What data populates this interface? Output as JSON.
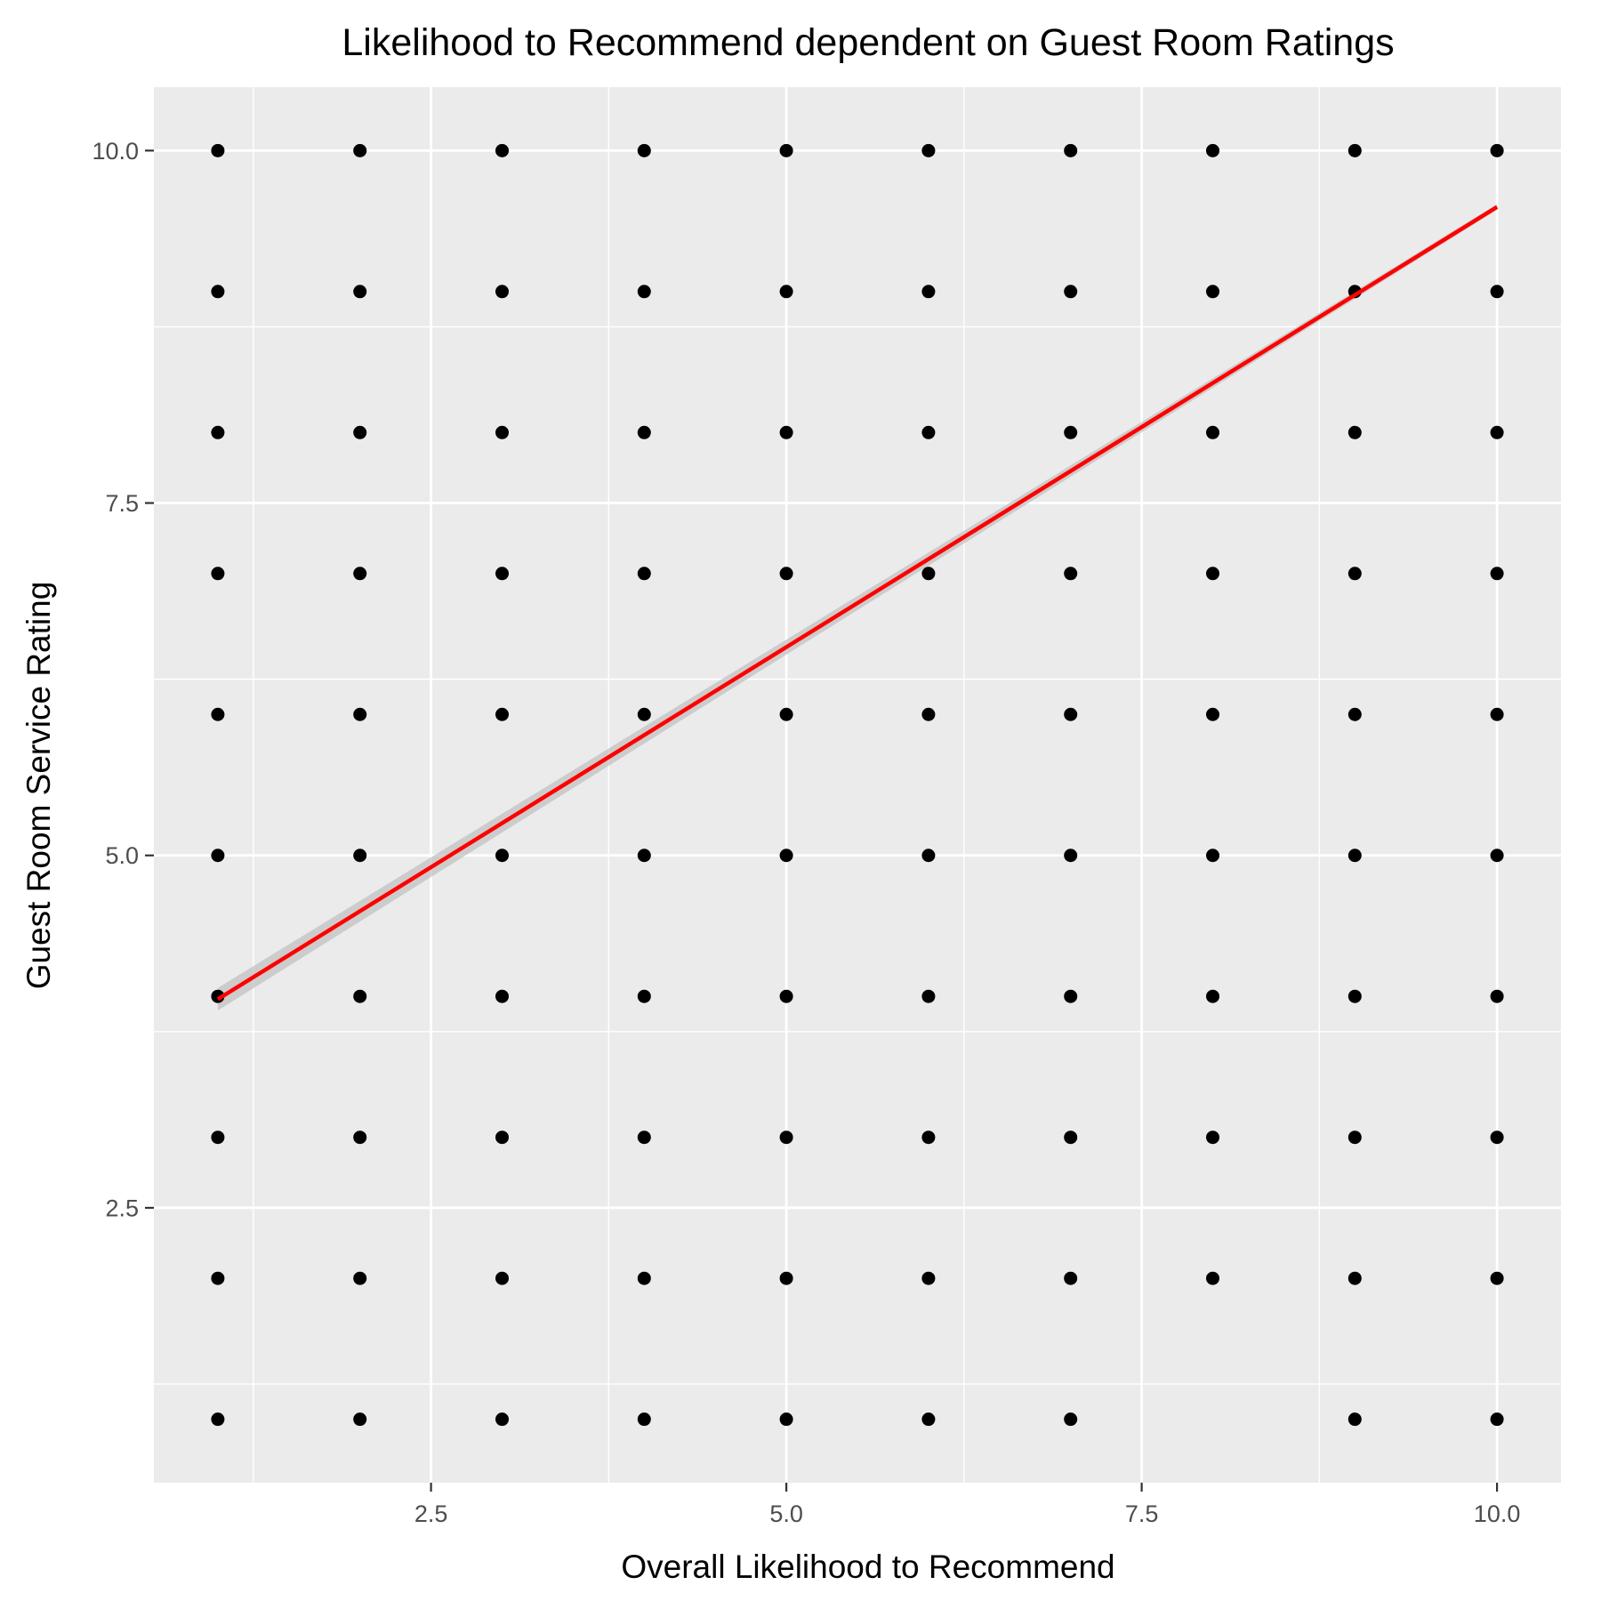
{
  "chart_data": {
    "type": "scatter",
    "title": "Likelihood to Recommend dependent on Guest Room Ratings",
    "xlabel": "Overall Likelihood to Recommend",
    "ylabel": "Guest Room Service Rating",
    "xlim": [
      0.55,
      10.45
    ],
    "ylim": [
      0.55,
      10.45
    ],
    "x_ticks": [
      2.5,
      5.0,
      7.5,
      10.0
    ],
    "x_tick_labels": [
      "2.5",
      "5.0",
      "7.5",
      "10.0"
    ],
    "y_ticks": [
      2.5,
      5.0,
      7.5,
      10.0
    ],
    "y_tick_labels": [
      "2.5",
      "5.0",
      "7.5",
      "10.0"
    ],
    "grid": true,
    "panel_background": "#ebebeb",
    "grid_color": "#ffffff",
    "point_color": "#000000",
    "trend_color": "#ff0000",
    "ribbon_color": "#bfbfbf",
    "points": [
      [
        1,
        1
      ],
      [
        1,
        2
      ],
      [
        1,
        3
      ],
      [
        1,
        4
      ],
      [
        1,
        5
      ],
      [
        1,
        6
      ],
      [
        1,
        7
      ],
      [
        1,
        8
      ],
      [
        1,
        9
      ],
      [
        1,
        10
      ],
      [
        2,
        1
      ],
      [
        2,
        2
      ],
      [
        2,
        3
      ],
      [
        2,
        4
      ],
      [
        2,
        5
      ],
      [
        2,
        6
      ],
      [
        2,
        7
      ],
      [
        2,
        8
      ],
      [
        2,
        9
      ],
      [
        2,
        10
      ],
      [
        3,
        1
      ],
      [
        3,
        2
      ],
      [
        3,
        3
      ],
      [
        3,
        4
      ],
      [
        3,
        5
      ],
      [
        3,
        6
      ],
      [
        3,
        7
      ],
      [
        3,
        8
      ],
      [
        3,
        9
      ],
      [
        3,
        10
      ],
      [
        4,
        1
      ],
      [
        4,
        2
      ],
      [
        4,
        3
      ],
      [
        4,
        4
      ],
      [
        4,
        5
      ],
      [
        4,
        6
      ],
      [
        4,
        7
      ],
      [
        4,
        8
      ],
      [
        4,
        9
      ],
      [
        4,
        10
      ],
      [
        5,
        1
      ],
      [
        5,
        2
      ],
      [
        5,
        3
      ],
      [
        5,
        4
      ],
      [
        5,
        5
      ],
      [
        5,
        6
      ],
      [
        5,
        7
      ],
      [
        5,
        8
      ],
      [
        5,
        9
      ],
      [
        5,
        10
      ],
      [
        6,
        1
      ],
      [
        6,
        2
      ],
      [
        6,
        3
      ],
      [
        6,
        4
      ],
      [
        6,
        5
      ],
      [
        6,
        6
      ],
      [
        6,
        7
      ],
      [
        6,
        8
      ],
      [
        6,
        9
      ],
      [
        6,
        10
      ],
      [
        7,
        1
      ],
      [
        7,
        2
      ],
      [
        7,
        3
      ],
      [
        7,
        4
      ],
      [
        7,
        5
      ],
      [
        7,
        6
      ],
      [
        7,
        7
      ],
      [
        7,
        8
      ],
      [
        7,
        9
      ],
      [
        7,
        10
      ],
      [
        8,
        2
      ],
      [
        8,
        3
      ],
      [
        8,
        4
      ],
      [
        8,
        5
      ],
      [
        8,
        6
      ],
      [
        8,
        7
      ],
      [
        8,
        8
      ],
      [
        8,
        9
      ],
      [
        8,
        10
      ],
      [
        9,
        1
      ],
      [
        9,
        2
      ],
      [
        9,
        3
      ],
      [
        9,
        4
      ],
      [
        9,
        5
      ],
      [
        9,
        6
      ],
      [
        9,
        7
      ],
      [
        9,
        8
      ],
      [
        9,
        9
      ],
      [
        9,
        10
      ],
      [
        10,
        1
      ],
      [
        10,
        2
      ],
      [
        10,
        3
      ],
      [
        10,
        4
      ],
      [
        10,
        5
      ],
      [
        10,
        6
      ],
      [
        10,
        7
      ],
      [
        10,
        8
      ],
      [
        10,
        9
      ],
      [
        10,
        10
      ]
    ],
    "trend_line": {
      "x": [
        1,
        10
      ],
      "y": [
        3.98,
        9.6
      ],
      "ribbon_halfwidth_start": 0.08,
      "ribbon_halfwidth_end": 0.02
    }
  }
}
